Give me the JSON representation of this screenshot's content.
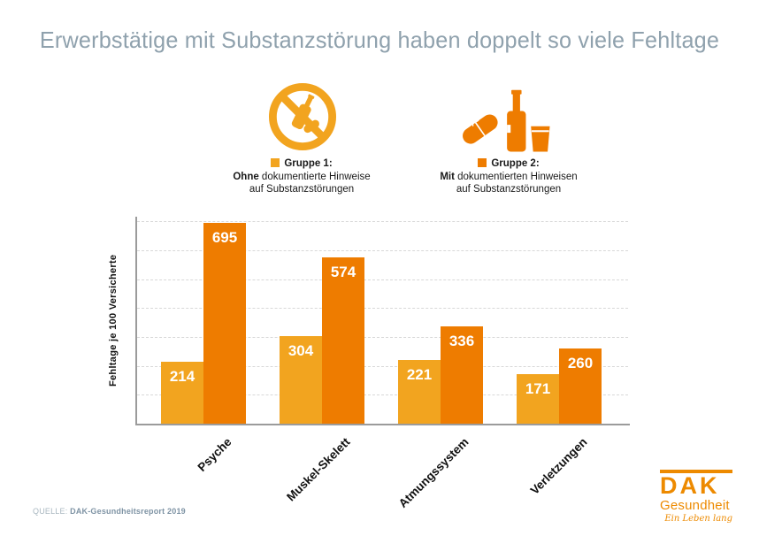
{
  "title": "Erwerbstätige mit Substanzstörung haben doppelt so viele Fehltage",
  "legend": {
    "group1": {
      "label": "Gruppe 1:",
      "bold": "Ohne",
      "rest": " dokumentierte Hinweise",
      "line2": "auf Substanzstörungen",
      "swatch_color": "#F2A41F"
    },
    "group2": {
      "label": "Gruppe 2:",
      "bold": "Mit",
      "rest": " dokumentierten Hinweisen",
      "line2": "auf Substanzstörungen",
      "swatch_color": "#EE7C00"
    }
  },
  "chart_data": {
    "type": "bar",
    "categories": [
      "Psyche",
      "Muskel-Skelett",
      "Atmungssystem",
      "Verletzungen"
    ],
    "series": [
      {
        "name": "Gruppe 1: Ohne dokumentierte Hinweise auf Substanzstörungen",
        "color": "#F2A41F",
        "values": [
          214,
          304,
          221,
          171
        ]
      },
      {
        "name": "Gruppe 2: Mit dokumentierten Hinweisen auf Substanzstörungen",
        "color": "#EE7C00",
        "values": [
          695,
          574,
          336,
          260
        ]
      }
    ],
    "title": "Erwerbstätige mit Substanzstörung haben doppelt so viele Fehltage",
    "xlabel": "",
    "ylabel": "Fehltage je 100 Versicherte",
    "ylim": [
      0,
      716
    ],
    "gridline_step": 100,
    "grid": "horizontal-dashed",
    "legend_position": "top",
    "value_labels": "inside-top-white"
  },
  "source": {
    "label": "QUELLE:",
    "text": "DAK-Gesundheitsreport 2019"
  },
  "logo": {
    "name": "DAK",
    "subtitle": "Gesundheit",
    "tagline": "Ein Leben lang",
    "color": "#ED8A00"
  },
  "colors": {
    "title_text": "#8FA1AD",
    "light_orange": "#F2A41F",
    "dark_orange": "#EE7C00",
    "axis": "#9B9B9B",
    "gridline": "#D8D8D8"
  }
}
